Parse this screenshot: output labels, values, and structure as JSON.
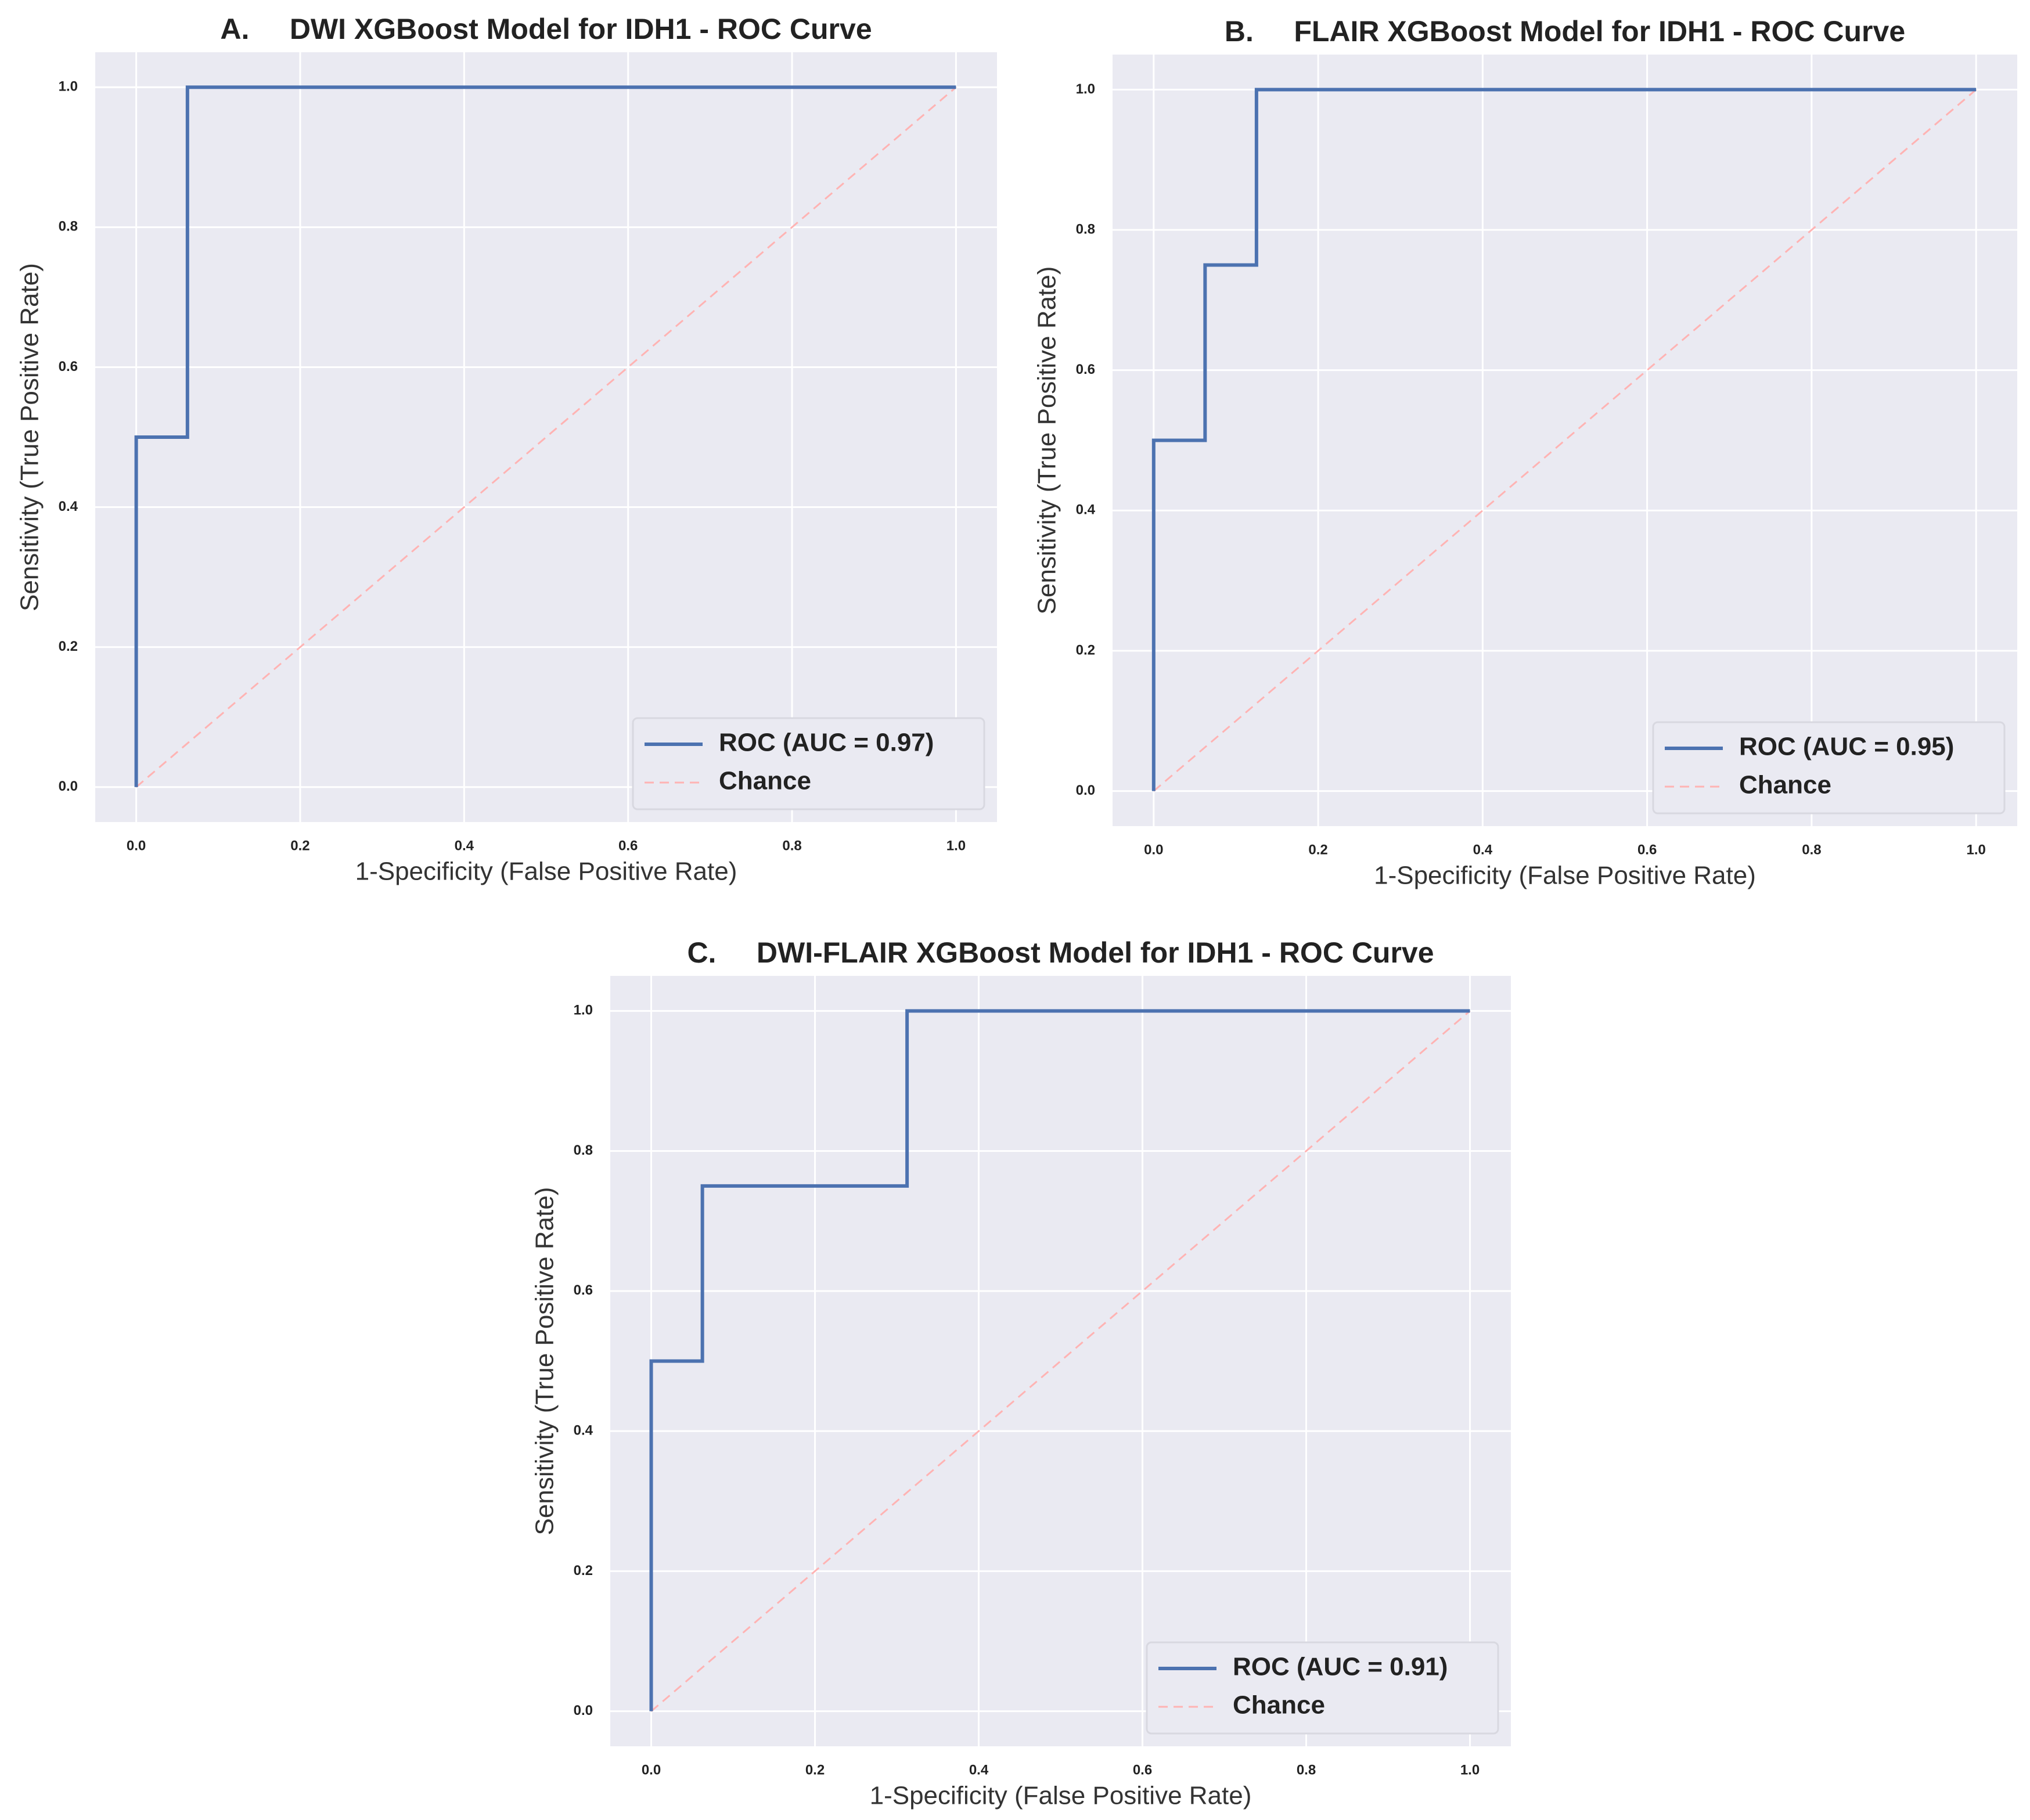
{
  "chart_data": [
    {
      "type": "line",
      "title": "A.     DWI XGBoost Model for IDH1 - ROC Curve",
      "xlabel": "1-Specificity (False Positive Rate)",
      "ylabel": "Sensitivity (True Positive Rate)",
      "xlim": [
        -0.05,
        1.05
      ],
      "ylim": [
        -0.05,
        1.05
      ],
      "xticks": [
        {
          "value": 0,
          "label": "0.0"
        },
        0.2,
        0.4,
        0.6,
        0.8,
        {
          "value": 1,
          "label": "1.0"
        }
      ],
      "yticks": [
        {
          "value": 0,
          "label": "0.0"
        },
        0.2,
        0.4,
        0.6,
        0.8,
        {
          "value": 1,
          "label": "1.0"
        }
      ],
      "grid": true,
      "legend": "lower right",
      "series": [
        {
          "name": "ROC (AUC = 0.97)",
          "color": "#4c72b0",
          "linestyle": "solid",
          "x": [
            0,
            0,
            0.0625,
            0.0625,
            1
          ],
          "values": [
            0,
            0.5,
            0.5,
            1,
            1
          ]
        },
        {
          "name": "Chance",
          "color": "#ffb3b3",
          "linestyle": "dashed",
          "x": [
            0,
            1
          ],
          "values": [
            0,
            1
          ]
        }
      ]
    },
    {
      "type": "line",
      "title": "B.     FLAIR XGBoost Model for IDH1 - ROC Curve",
      "xlabel": "1-Specificity (False Positive Rate)",
      "ylabel": "Sensitivity (True Positive Rate)",
      "xlim": [
        -0.05,
        1.05
      ],
      "ylim": [
        -0.05,
        1.05
      ],
      "xticks": [
        {
          "value": 0,
          "label": "0.0"
        },
        0.2,
        0.4,
        0.6,
        0.8,
        {
          "value": 1,
          "label": "1.0"
        }
      ],
      "yticks": [
        {
          "value": 0,
          "label": "0.0"
        },
        0.2,
        0.4,
        0.6,
        0.8,
        {
          "value": 1,
          "label": "1.0"
        }
      ],
      "grid": true,
      "legend": "lower right",
      "series": [
        {
          "name": "ROC (AUC = 0.95)",
          "color": "#4c72b0",
          "linestyle": "solid",
          "x": [
            0,
            0,
            0.0625,
            0.0625,
            0.125,
            0.125,
            1
          ],
          "values": [
            0,
            0.5,
            0.5,
            0.75,
            0.75,
            1,
            1
          ]
        },
        {
          "name": "Chance",
          "color": "#ffb3b3",
          "linestyle": "dashed",
          "x": [
            0,
            1
          ],
          "values": [
            0,
            1
          ]
        }
      ]
    },
    {
      "type": "line",
      "title": "C.     DWI-FLAIR XGBoost Model for IDH1 - ROC Curve",
      "xlabel": "1-Specificity (False Positive Rate)",
      "ylabel": "Sensitivity (True Positive Rate)",
      "xlim": [
        -0.05,
        1.05
      ],
      "ylim": [
        -0.05,
        1.05
      ],
      "xticks": [
        {
          "value": 0,
          "label": "0.0"
        },
        0.2,
        0.4,
        0.6,
        0.8,
        {
          "value": 1,
          "label": "1.0"
        }
      ],
      "yticks": [
        {
          "value": 0,
          "label": "0.0"
        },
        0.2,
        0.4,
        0.6,
        0.8,
        {
          "value": 1,
          "label": "1.0"
        }
      ],
      "grid": true,
      "legend": "lower right",
      "series": [
        {
          "name": "ROC (AUC = 0.91)",
          "color": "#4c72b0",
          "linestyle": "solid",
          "x": [
            0,
            0,
            0.0625,
            0.0625,
            0.3125,
            0.3125,
            1
          ],
          "values": [
            0,
            0.5,
            0.5,
            0.75,
            0.75,
            1,
            1
          ]
        },
        {
          "name": "Chance",
          "color": "#ffb3b3",
          "linestyle": "dashed",
          "x": [
            0,
            1
          ],
          "values": [
            0,
            1
          ]
        }
      ]
    }
  ]
}
